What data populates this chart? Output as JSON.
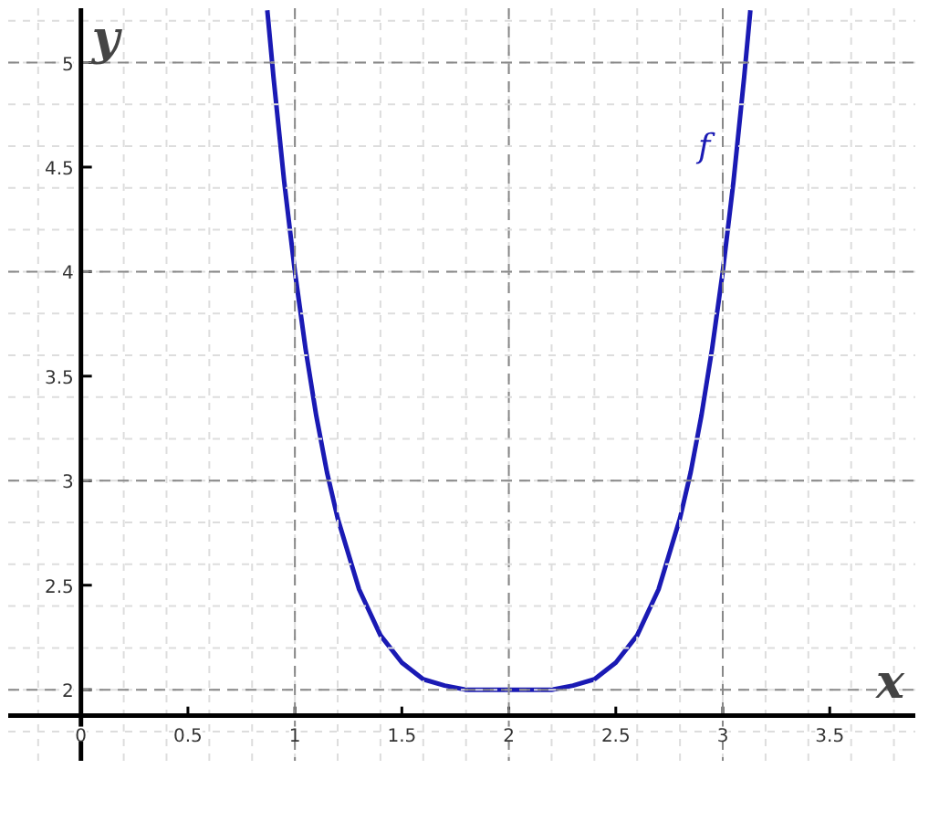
{
  "chart_data": {
    "type": "line",
    "xlabel": "x",
    "ylabel": "y",
    "xlim": [
      -0.34,
      3.9
    ],
    "ylim": [
      1.66,
      5.26
    ],
    "xticks": [
      0,
      0.5,
      1,
      1.5,
      2,
      2.5,
      3,
      3.5
    ],
    "yticks": [
      2,
      2.5,
      3,
      3.5,
      4,
      4.5,
      5
    ],
    "grid": true,
    "marker": "none",
    "line_style": "solid",
    "series": [
      {
        "color": "#1a1ab4",
        "x": [
          0.871,
          0.9,
          0.95,
          1.0,
          1.05,
          1.1,
          1.15,
          1.2,
          1.3,
          1.4,
          1.5,
          1.6,
          1.7,
          1.8,
          1.9,
          2.0,
          2.1,
          2.2,
          2.3,
          2.4,
          2.5,
          2.6,
          2.7,
          2.8,
          2.85,
          2.9,
          2.95,
          3.0,
          3.05,
          3.1,
          3.129
        ],
        "values": [
          5.25,
          4.93,
          4.43,
          4.0,
          3.63,
          3.31,
          3.04,
          2.82,
          2.48,
          2.26,
          2.13,
          2.05,
          2.02,
          2.0,
          2.0,
          2.0,
          2.0,
          2.0,
          2.02,
          2.05,
          2.13,
          2.26,
          2.48,
          2.82,
          3.04,
          3.31,
          3.63,
          4.0,
          4.43,
          4.93,
          5.25
        ]
      }
    ],
    "annotations": [
      "f"
    ]
  }
}
